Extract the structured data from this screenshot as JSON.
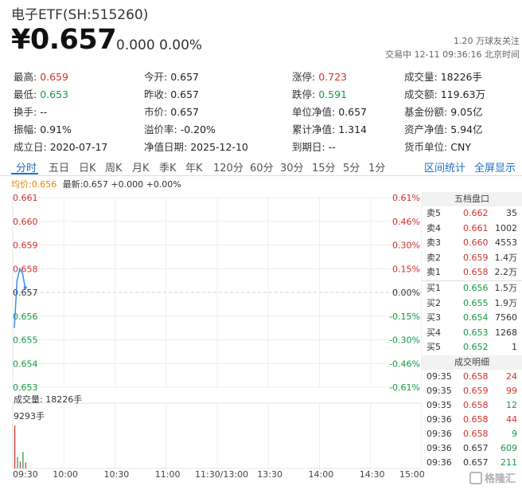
{
  "header": {
    "title": "电子ETF(SH:515260)",
    "price": "¥0.657",
    "change": "0.000  0.00%",
    "followers": "1.20 万球友关注",
    "status": "交易中 12-11 09:36:16 北京时间"
  },
  "stats": [
    [
      {
        "label": "最高:",
        "value": "0.659",
        "color": "red"
      },
      {
        "label": "今开:",
        "value": "0.657",
        "color": ""
      },
      {
        "label": "涨停:",
        "value": "0.723",
        "color": "red"
      },
      {
        "label": "成交量:",
        "value": "18226手",
        "color": ""
      }
    ],
    [
      {
        "label": "最低:",
        "value": "0.653",
        "color": "green"
      },
      {
        "label": "昨收:",
        "value": "0.657",
        "color": ""
      },
      {
        "label": "跌停:",
        "value": "0.591",
        "color": "green"
      },
      {
        "label": "成交额:",
        "value": "119.63万",
        "color": ""
      }
    ],
    [
      {
        "label": "换手:",
        "value": "--",
        "color": ""
      },
      {
        "label": "市价:",
        "value": "0.657",
        "color": ""
      },
      {
        "label": "单位净值:",
        "value": "0.657",
        "color": ""
      },
      {
        "label": "基金份额:",
        "value": "9.05亿",
        "color": ""
      }
    ],
    [
      {
        "label": "振幅:",
        "value": "0.91%",
        "color": ""
      },
      {
        "label": "溢价率:",
        "value": "-0.20%",
        "color": ""
      },
      {
        "label": "累计净值:",
        "value": "1.314",
        "color": ""
      },
      {
        "label": "资产净值:",
        "value": "5.94亿",
        "color": ""
      }
    ],
    [
      {
        "label": "成立日:",
        "value": "2020-07-17",
        "color": ""
      },
      {
        "label": "净值日期:",
        "value": "2025-12-10",
        "color": ""
      },
      {
        "label": "到期日:",
        "value": "--",
        "color": ""
      },
      {
        "label": "货币单位:",
        "value": "CNY",
        "color": ""
      }
    ]
  ],
  "tabs": [
    "分时",
    "五日",
    "日K",
    "周K",
    "月K",
    "季K",
    "年K",
    "120分",
    "60分",
    "30分",
    "15分",
    "5分",
    "1分"
  ],
  "tabs_right": [
    "区间统计",
    "全屏显示"
  ],
  "legend": {
    "avg": "均价:0.656",
    "last": "最新:0.657 +0.000 +0.00%"
  },
  "chart_data": {
    "type": "line",
    "y_price_ticks": [
      "0.661",
      "0.660",
      "0.659",
      "0.658",
      "0.657",
      "0.656",
      "0.655",
      "0.654",
      "0.653"
    ],
    "y_pct_ticks": [
      "0.61%",
      "0.46%",
      "0.30%",
      "0.15%",
      "0.00%",
      "-0.15%",
      "-0.30%",
      "-0.46%",
      "-0.61%"
    ],
    "ylim": [
      0.653,
      0.661
    ],
    "x_ticks": [
      "09:30",
      "10:00",
      "10:30",
      "11:00",
      "11:30/13:00",
      "13:30",
      "14:00",
      "14:30",
      "15:00"
    ],
    "series": [
      {
        "values": [
          0.6555,
          0.6575,
          0.658,
          0.6578,
          0.6572
        ]
      }
    ],
    "volume_label": "成交量: 18226手",
    "volume_max_label": "9293手",
    "volume_values": [
      9293,
      2500,
      1500,
      3600,
      1300
    ]
  },
  "orderbook": {
    "title": "五档盘口",
    "asks": [
      {
        "label": "卖5",
        "price": "0.662",
        "vol": "35"
      },
      {
        "label": "卖4",
        "price": "0.661",
        "vol": "1002"
      },
      {
        "label": "卖3",
        "price": "0.660",
        "vol": "4553"
      },
      {
        "label": "卖2",
        "price": "0.659",
        "vol": "1.4万"
      },
      {
        "label": "卖1",
        "price": "0.658",
        "vol": "2.2万"
      }
    ],
    "bids": [
      {
        "label": "买1",
        "price": "0.656",
        "vol": "1.5万"
      },
      {
        "label": "买2",
        "price": "0.655",
        "vol": "1.9万"
      },
      {
        "label": "买3",
        "price": "0.654",
        "vol": "7560"
      },
      {
        "label": "买4",
        "price": "0.653",
        "vol": "1268"
      },
      {
        "label": "买5",
        "price": "0.652",
        "vol": "1"
      }
    ]
  },
  "trades": {
    "title": "成交明细",
    "rows": [
      {
        "time": "09:35",
        "price": "0.658",
        "vol": "24",
        "color": "red"
      },
      {
        "time": "09:35",
        "price": "0.659",
        "vol": "99",
        "color": "red"
      },
      {
        "time": "09:35",
        "price": "0.658",
        "vol": "12",
        "color": "green"
      },
      {
        "time": "09:36",
        "price": "0.658",
        "vol": "44",
        "color": "red"
      },
      {
        "time": "09:36",
        "price": "0.658",
        "vol": "9",
        "color": "green"
      },
      {
        "time": "09:36",
        "price": "0.657",
        "vol": "609",
        "color": "green"
      },
      {
        "time": "09:36",
        "price": "0.657",
        "vol": "211",
        "color": "green"
      }
    ]
  },
  "watermark": "格隆汇",
  "colors": {
    "up": "#d0312d",
    "down": "#139a43",
    "accent": "#1d6fc9",
    "line": "#3a8ee6",
    "avg": "#e08a00"
  }
}
